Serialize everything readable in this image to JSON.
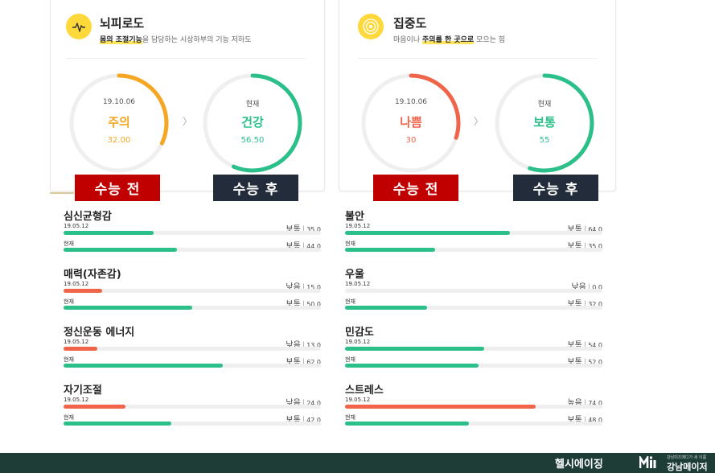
{
  "colors": {
    "good": "#2bbf8a",
    "caution": "#f5a623",
    "bad": "#f0654a",
    "track": "#efefef"
  },
  "cards": [
    {
      "title": "뇌피로도",
      "desc_highlight": "몸의 조절기능",
      "desc_rest": "을 담당하는 시상하부의 기능 저하도",
      "icon": "pulse-icon",
      "before": {
        "date": "19.10.06",
        "status": "주의",
        "value": "32.00",
        "color": "#f5a623",
        "percent": 32
      },
      "after": {
        "label": "현재",
        "status": "건강",
        "value": "56.50",
        "color": "#2bbf8a",
        "percent": 56.5
      },
      "tag_before": "수능 전",
      "tag_after": "수능 후"
    },
    {
      "title": "집중도",
      "desc_pre": "마음이나 ",
      "desc_highlight": "주의를 한 곳으로",
      "desc_rest": " 모으는 힘",
      "icon": "target-icon",
      "before": {
        "date": "19.10.06",
        "status": "나쁨",
        "value": "30",
        "color": "#f0654a",
        "percent": 30
      },
      "after": {
        "label": "현재",
        "status": "보통",
        "value": "55",
        "color": "#2bbf8a",
        "percent": 55
      },
      "tag_before": "수능 전",
      "tag_after": "수능 후"
    }
  ],
  "metrics_left": [
    {
      "title": "심신균형감",
      "r1": {
        "label": "19.05.12",
        "level": "보통",
        "value": "35.0",
        "fill": 0.35,
        "color": "#2bbf8a"
      },
      "r2": {
        "label": "현재",
        "level": "보통",
        "value": "44.0",
        "fill": 0.44,
        "color": "#2bbf8a"
      }
    },
    {
      "title": "매력(자존감)",
      "r1": {
        "label": "19.05.12",
        "level": "낮음",
        "value": "15.0",
        "fill": 0.15,
        "color": "#f0654a"
      },
      "r2": {
        "label": "현재",
        "level": "보통",
        "value": "50.0",
        "fill": 0.5,
        "color": "#2bbf8a"
      }
    },
    {
      "title": "정신운동 에너지",
      "r1": {
        "label": "19.05.12",
        "level": "낮음",
        "value": "13.0",
        "fill": 0.13,
        "color": "#f0654a"
      },
      "r2": {
        "label": "현재",
        "level": "보통",
        "value": "62.0",
        "fill": 0.62,
        "color": "#2bbf8a"
      }
    },
    {
      "title": "자기조절",
      "r1": {
        "label": "19.05.12",
        "level": "낮음",
        "value": "24.0",
        "fill": 0.24,
        "color": "#f0654a"
      },
      "r2": {
        "label": "현재",
        "level": "보통",
        "value": "42.0",
        "fill": 0.42,
        "color": "#2bbf8a"
      }
    }
  ],
  "metrics_right": [
    {
      "title": "불안",
      "r1": {
        "label": "19.05.12",
        "level": "보통",
        "value": "64.0",
        "fill": 0.64,
        "color": "#2bbf8a"
      },
      "r2": {
        "label": "현재",
        "level": "보통",
        "value": "35.0",
        "fill": 0.35,
        "color": "#2bbf8a"
      }
    },
    {
      "title": "우울",
      "r1": {
        "label": "19.05.12",
        "level": "낮음",
        "value": "0.0",
        "fill": 0.0,
        "color": "#f0654a"
      },
      "r2": {
        "label": "현재",
        "level": "보통",
        "value": "32.0",
        "fill": 0.32,
        "color": "#2bbf8a"
      }
    },
    {
      "title": "민감도",
      "r1": {
        "label": "19.05.12",
        "level": "보통",
        "value": "54.0",
        "fill": 0.54,
        "color": "#2bbf8a"
      },
      "r2": {
        "label": "현재",
        "level": "보통",
        "value": "52.0",
        "fill": 0.52,
        "color": "#2bbf8a"
      }
    },
    {
      "title": "스트레스",
      "r1": {
        "label": "19.05.12",
        "level": "높음",
        "value": "74.0",
        "fill": 0.74,
        "color": "#f0654a"
      },
      "r2": {
        "label": "현재",
        "level": "보통",
        "value": "48.0",
        "fill": 0.48,
        "color": "#2bbf8a"
      }
    }
  ],
  "footer": {
    "brand": "헬시에이징",
    "logo_icon": "mi-logo-icon",
    "sub": "강남미즈메디가 세 이룸",
    "name": "강남메이저"
  }
}
